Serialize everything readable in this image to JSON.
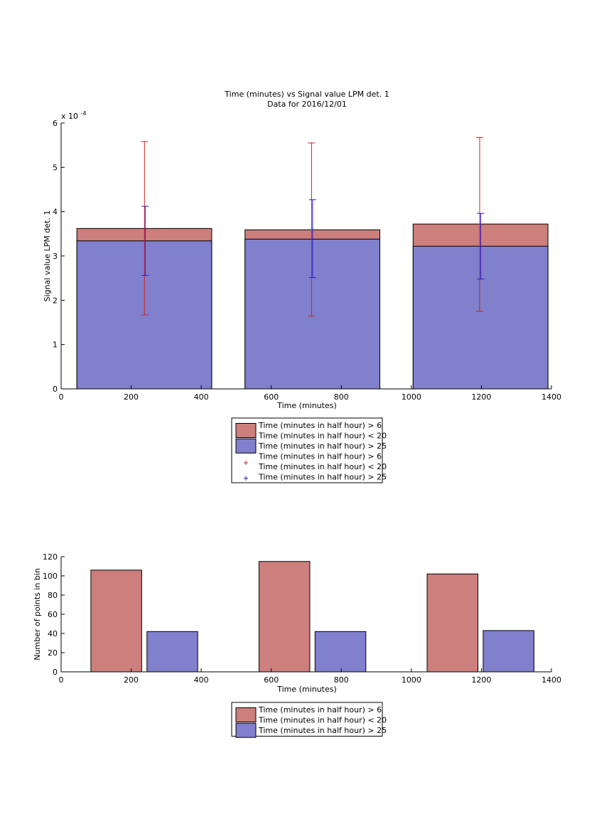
{
  "chart_data": [
    {
      "type": "bar",
      "title": "Time (minutes) vs Signal value LPM det. 1",
      "subtitle": "Data for 2016/12/01",
      "xlabel": "Time (minutes)",
      "ylabel": "Signal value LPM det. 1",
      "y_exponent": "x 10",
      "y_exponent_power": "-4",
      "xlim": [
        0,
        1400
      ],
      "ylim": [
        0,
        6
      ],
      "x_ticks": [
        0,
        200,
        400,
        600,
        800,
        1000,
        1200,
        1400
      ],
      "y_ticks": [
        0,
        1,
        2,
        3,
        4,
        5,
        6
      ],
      "bars": [
        {
          "x0": 45,
          "x1": 430,
          "center": 240
        },
        {
          "x0": 525,
          "x1": 910,
          "center": 718
        },
        {
          "x0": 1005,
          "x1": 1390,
          "center": 1198
        }
      ],
      "series": [
        {
          "name": "Time (minutes in half hour) > 6\nTime (minutes in half hour) < 20",
          "color": "#cc7f7c",
          "values": [
            3.62,
            3.59,
            3.72
          ],
          "errors": {
            "color": "#cc2222",
            "low": [
              1.67,
              1.64,
              1.75
            ],
            "high": [
              5.58,
              5.55,
              5.67
            ],
            "x": [
              238,
              715,
              1195
            ]
          }
        },
        {
          "name": "Time (minutes in half hour) > 25",
          "color": "#8080cc",
          "values": [
            3.34,
            3.38,
            3.22
          ],
          "errors": {
            "color": "#1a1ad9",
            "low": [
              2.56,
              2.51,
              2.48
            ],
            "high": [
              4.12,
              4.27,
              3.96
            ],
            "x": [
              240,
              718,
              1198
            ]
          }
        }
      ],
      "legend": {
        "placement": "below",
        "entries": [
          {
            "kind": "patch",
            "color": "#cc7f7c",
            "lines": [
              "Time (minutes in half hour) > 6",
              "Time (minutes in half hour) < 20"
            ]
          },
          {
            "kind": "patch",
            "color": "#8080cc",
            "lines": [
              "Time (minutes in half hour) > 25"
            ]
          },
          {
            "kind": "marker",
            "color": "#cc2222",
            "lines": [
              "Time (minutes in half hour) > 6",
              "Time (minutes in half hour) < 20"
            ]
          },
          {
            "kind": "marker",
            "color": "#1a1ad9",
            "lines": [
              "Time (minutes in half hour) > 25"
            ]
          }
        ]
      }
    },
    {
      "type": "bar",
      "xlabel": "Time (minutes)",
      "ylabel": "Number of points in bin",
      "xlim": [
        0,
        1400
      ],
      "ylim": [
        0,
        120
      ],
      "x_ticks": [
        0,
        200,
        400,
        600,
        800,
        1000,
        1200,
        1400
      ],
      "y_ticks": [
        0,
        20,
        40,
        60,
        80,
        100,
        120
      ],
      "series": [
        {
          "name": "Time (minutes in half hour) > 6\nTime (minutes in half hour) < 20",
          "color": "#cc7f7c",
          "bars": [
            {
              "x0": 85,
              "x1": 230,
              "value": 106
            },
            {
              "x0": 565,
              "x1": 710,
              "value": 115
            },
            {
              "x0": 1045,
              "x1": 1190,
              "value": 102
            }
          ]
        },
        {
          "name": "Time (minutes in half hour) > 25",
          "color": "#8080cc",
          "bars": [
            {
              "x0": 245,
              "x1": 390,
              "value": 42
            },
            {
              "x0": 725,
              "x1": 870,
              "value": 42
            },
            {
              "x0": 1205,
              "x1": 1350,
              "value": 43
            }
          ]
        }
      ],
      "legend": {
        "placement": "below",
        "entries": [
          {
            "kind": "patch",
            "color": "#cc7f7c",
            "lines": [
              "Time (minutes in half hour) > 6",
              "Time (minutes in half hour) < 20"
            ]
          },
          {
            "kind": "patch",
            "color": "#8080cc",
            "lines": [
              "Time (minutes in half hour) > 25"
            ]
          }
        ]
      }
    }
  ]
}
